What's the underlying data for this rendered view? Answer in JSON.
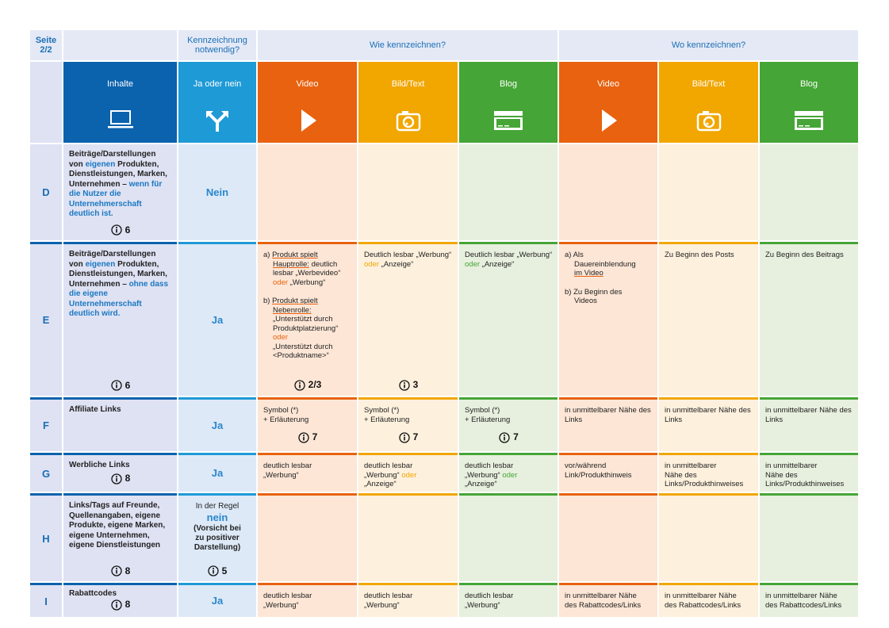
{
  "header": {
    "page_label": "Seite",
    "page_number": "2/2",
    "required": "Kennzeichnung notwendig?",
    "how": "Wie kennzeichnen?",
    "where": "Wo kennzeichnen?"
  },
  "columns": {
    "content": "Inhalte",
    "answer": "Ja oder nein",
    "how": [
      "Video",
      "Bild/Text",
      "Blog"
    ],
    "where": [
      "Video",
      "Bild/Text",
      "Blog"
    ]
  },
  "rows": [
    {
      "letter": "D",
      "content": [
        "Beiträge/Darstellungen von",
        "eigenen",
        "Produkten, Dienstleistungen, Marken, Unternehmen –",
        "wenn für die Nutzer die Unternehmerschaft deutlich ist."
      ],
      "info": "6",
      "answer": "Nein"
    },
    {
      "letter": "E",
      "content": [
        "Beiträge/Darstellungen von",
        "eigenen",
        "Produkten, Dienstleistungen, Marken, Unternehmen –",
        "ohne dass die eigene Unternehmerschaft deutlich wird."
      ],
      "info": "6",
      "answer": "Ja",
      "how": [
        {
          "a": [
            "a)",
            "Produkt spielt Hauptrolle:",
            "deutlich lesbar „Werbevideo“",
            "oder",
            "„Werbung“"
          ],
          "b": [
            "b)",
            "Produkt spielt Nebenrolle:",
            "„Unterstützt durch Produktplatzierung“",
            "oder",
            "„Unterstützt durch <Produktname>“"
          ],
          "info": "2/3"
        },
        {
          "text": [
            "Deutlich lesbar „Werbung“",
            "oder",
            "„Anzeige“"
          ],
          "info": "3"
        },
        {
          "text": [
            "Deutlich lesbar „Werbung“",
            "oder",
            "„Anzeige“"
          ]
        }
      ],
      "where": [
        {
          "a": [
            "a)",
            "Als Dauereinblendung",
            "im Video"
          ],
          "b": [
            "b)",
            "Zu Beginn des Videos"
          ]
        },
        {
          "text": [
            "Zu Beginn des Posts"
          ]
        },
        {
          "text": [
            "Zu Beginn des Beitrags"
          ]
        }
      ]
    },
    {
      "letter": "F",
      "content": [
        "Affiliate Links"
      ],
      "answer": "Ja",
      "how": [
        {
          "text": [
            "Symbol (*)",
            "+ Erläuterung"
          ],
          "info": "7"
        },
        {
          "text": [
            "Symbol (*)",
            "+ Erläuterung"
          ],
          "info": "7"
        },
        {
          "text": [
            "Symbol (*)",
            "+ Erläuterung"
          ],
          "info": "7"
        }
      ],
      "where": [
        {
          "text": [
            "in unmittelbarer Nähe des Links"
          ]
        },
        {
          "text": [
            "in unmittelbarer Nähe des Links"
          ]
        },
        {
          "text": [
            "in unmittelbarer Nähe des Links"
          ]
        }
      ]
    },
    {
      "letter": "G",
      "content": [
        "Werbliche Links"
      ],
      "info": "8",
      "answer": "Ja",
      "how": [
        {
          "text": [
            "deutlich lesbar",
            "„Werbung“"
          ]
        },
        {
          "text": [
            "deutlich lesbar",
            "„Werbung“",
            "oder",
            "„Anzeige“"
          ]
        },
        {
          "text": [
            "deutlich lesbar",
            "„Werbung“",
            "oder",
            "„Anzeige“"
          ]
        }
      ],
      "where": [
        {
          "text": [
            "vor/während Link/Produkthinweis"
          ]
        },
        {
          "text": [
            "in unmittelbarer Nähe des Links/Produkthinweises"
          ]
        },
        {
          "text": [
            "in unmittelbarer Nähe des Links/Produkthinweises"
          ]
        }
      ]
    },
    {
      "letter": "H",
      "content": [
        "Links/Tags auf Freunde, Quellenangaben, eigene Produkte, eigene Marken, eigene Unternehmen, eigene Dienstleistungen"
      ],
      "info": "8",
      "answer": [
        "In der Regel",
        "nein",
        "(Vorsicht bei zu positiver Darstellung)"
      ],
      "answer_info": "5"
    },
    {
      "letter": "I",
      "content": [
        "Rabattcodes"
      ],
      "info": "8",
      "answer": "Ja",
      "how": [
        {
          "text": [
            "deutlich lesbar",
            "„Werbung“"
          ]
        },
        {
          "text": [
            "deutlich lesbar",
            "„Werbung“"
          ]
        },
        {
          "text": [
            "deutlich lesbar",
            "„Werbung“"
          ]
        }
      ],
      "where": [
        {
          "text": [
            "in unmittelbarer Nähe des Rabattcodes/Links"
          ]
        },
        {
          "text": [
            "in unmittelbarer Nähe des Rabattcodes/Links"
          ]
        },
        {
          "text": [
            "in unmittelbarer Nähe des Rabattcodes/Links"
          ]
        }
      ]
    }
  ]
}
